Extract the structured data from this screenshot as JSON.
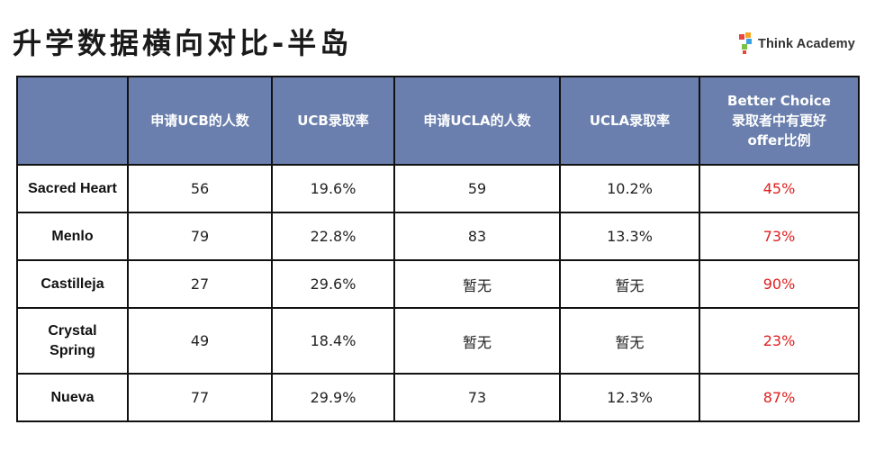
{
  "title": "升学数据横向对比-半岛",
  "logo": {
    "text": "Think Academy",
    "icon": "think-academy-logo-icon",
    "colors": [
      "#e8463c",
      "#f5a623",
      "#3aa0e0",
      "#7cc143"
    ]
  },
  "table": {
    "header_bg": "#6a7fad",
    "highlight_color": "#e02020",
    "columns": [
      "",
      "申请UCB的人数",
      "UCB录取率",
      "申请UCLA的人数",
      "UCLA录取率",
      [
        "Better Choice",
        "录取者中有更好",
        "offer比例"
      ]
    ],
    "rows": [
      {
        "school": [
          "Sacred Heart"
        ],
        "ucb_applicants": "56",
        "ucb_rate": "19.6%",
        "ucla_applicants": "59",
        "ucla_rate": "10.2%",
        "better_offer": "45%"
      },
      {
        "school": [
          "Menlo"
        ],
        "ucb_applicants": "79",
        "ucb_rate": "22.8%",
        "ucla_applicants": "83",
        "ucla_rate": "13.3%",
        "better_offer": "73%"
      },
      {
        "school": [
          "Castilleja"
        ],
        "ucb_applicants": "27",
        "ucb_rate": "29.6%",
        "ucla_applicants": "暂无",
        "ucla_rate": "暂无",
        "better_offer": "90%"
      },
      {
        "school": [
          "Crystal",
          "Spring"
        ],
        "ucb_applicants": "49",
        "ucb_rate": "18.4%",
        "ucla_applicants": "暂无",
        "ucla_rate": "暂无",
        "better_offer": "23%"
      },
      {
        "school": [
          "Nueva"
        ],
        "ucb_applicants": "77",
        "ucb_rate": "29.9%",
        "ucla_applicants": "73",
        "ucla_rate": "12.3%",
        "better_offer": "87%"
      }
    ]
  }
}
